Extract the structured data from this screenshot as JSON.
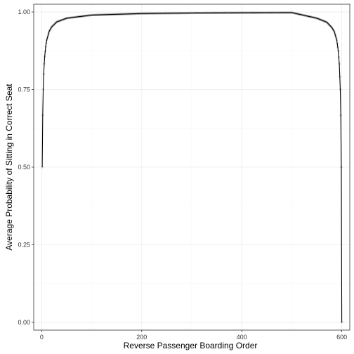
{
  "chart_data": {
    "type": "line",
    "xlabel": "Reverse Passenger Boarding Order",
    "ylabel": "Average Probability of Sitting in Correct Seat",
    "xlim": [
      -16,
      616
    ],
    "ylim": [
      -0.025,
      1.025
    ],
    "x_ticks": [
      0,
      200,
      400,
      600
    ],
    "y_ticks": [
      0.0,
      0.25,
      0.5,
      0.75,
      1.0
    ],
    "x_tick_labels": [
      "0",
      "200",
      "400",
      "600"
    ],
    "y_tick_labels": [
      "0.00",
      "0.25",
      "0.50",
      "0.75",
      "1.00"
    ],
    "grid": true,
    "n_passengers": 600,
    "series": [
      {
        "x": [
          1,
          2,
          3,
          4,
          5,
          6,
          8,
          10,
          15,
          20,
          30,
          50,
          100,
          200,
          300,
          400,
          500,
          550,
          570,
          580,
          585,
          590,
          593,
          595,
          597,
          598,
          599,
          600
        ],
        "y": [
          0.5,
          0.667,
          0.75,
          0.8,
          0.833,
          0.857,
          0.889,
          0.909,
          0.938,
          0.952,
          0.968,
          0.98,
          0.99,
          0.995,
          0.9967,
          0.9975,
          0.998,
          0.98,
          0.967,
          0.95,
          0.937,
          0.909,
          0.875,
          0.833,
          0.75,
          0.667,
          0.5,
          0.0
        ]
      }
    ]
  },
  "colors": {
    "line": "#000000",
    "points": "#9e9e9e",
    "grid_major": "#ebebeb",
    "grid_minor": "#f5f5f5",
    "panel_border": "#333333",
    "background": "#ffffff"
  }
}
